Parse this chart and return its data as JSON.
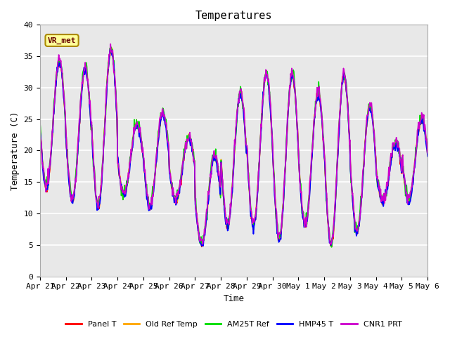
{
  "title": "Temperatures",
  "xlabel": "Time",
  "ylabel": "Temperature (C)",
  "ylim": [
    0,
    40
  ],
  "annotation": "VR_met",
  "background_color": "#e8e8e8",
  "grid_color": "white",
  "series_names": [
    "Panel T",
    "Old Ref Temp",
    "AM25T Ref",
    "HMP45 T",
    "CNR1 PRT"
  ],
  "series_colors": [
    "#ff0000",
    "#ffa500",
    "#00dd00",
    "#0000ff",
    "#cc00cc"
  ],
  "series_lw": [
    1.2,
    1.2,
    1.2,
    1.2,
    1.2
  ],
  "date_labels": [
    "Apr 21",
    "Apr 22",
    "Apr 23",
    "Apr 24",
    "Apr 25",
    "Apr 26",
    "Apr 27",
    "Apr 28",
    "Apr 29",
    "Apr 30",
    "May 1",
    "May 2",
    "May 3",
    "May 4",
    "May 5",
    "May 6"
  ],
  "n_days": 15,
  "pts_per_day": 48,
  "daily_max": [
    34,
    33,
    36,
    24,
    26,
    22,
    19,
    29,
    32,
    32,
    29,
    32,
    27,
    21,
    25
  ],
  "daily_min": [
    14,
    12,
    11,
    13,
    11,
    12,
    5,
    8,
    8,
    6,
    8,
    5,
    7,
    12,
    12
  ]
}
